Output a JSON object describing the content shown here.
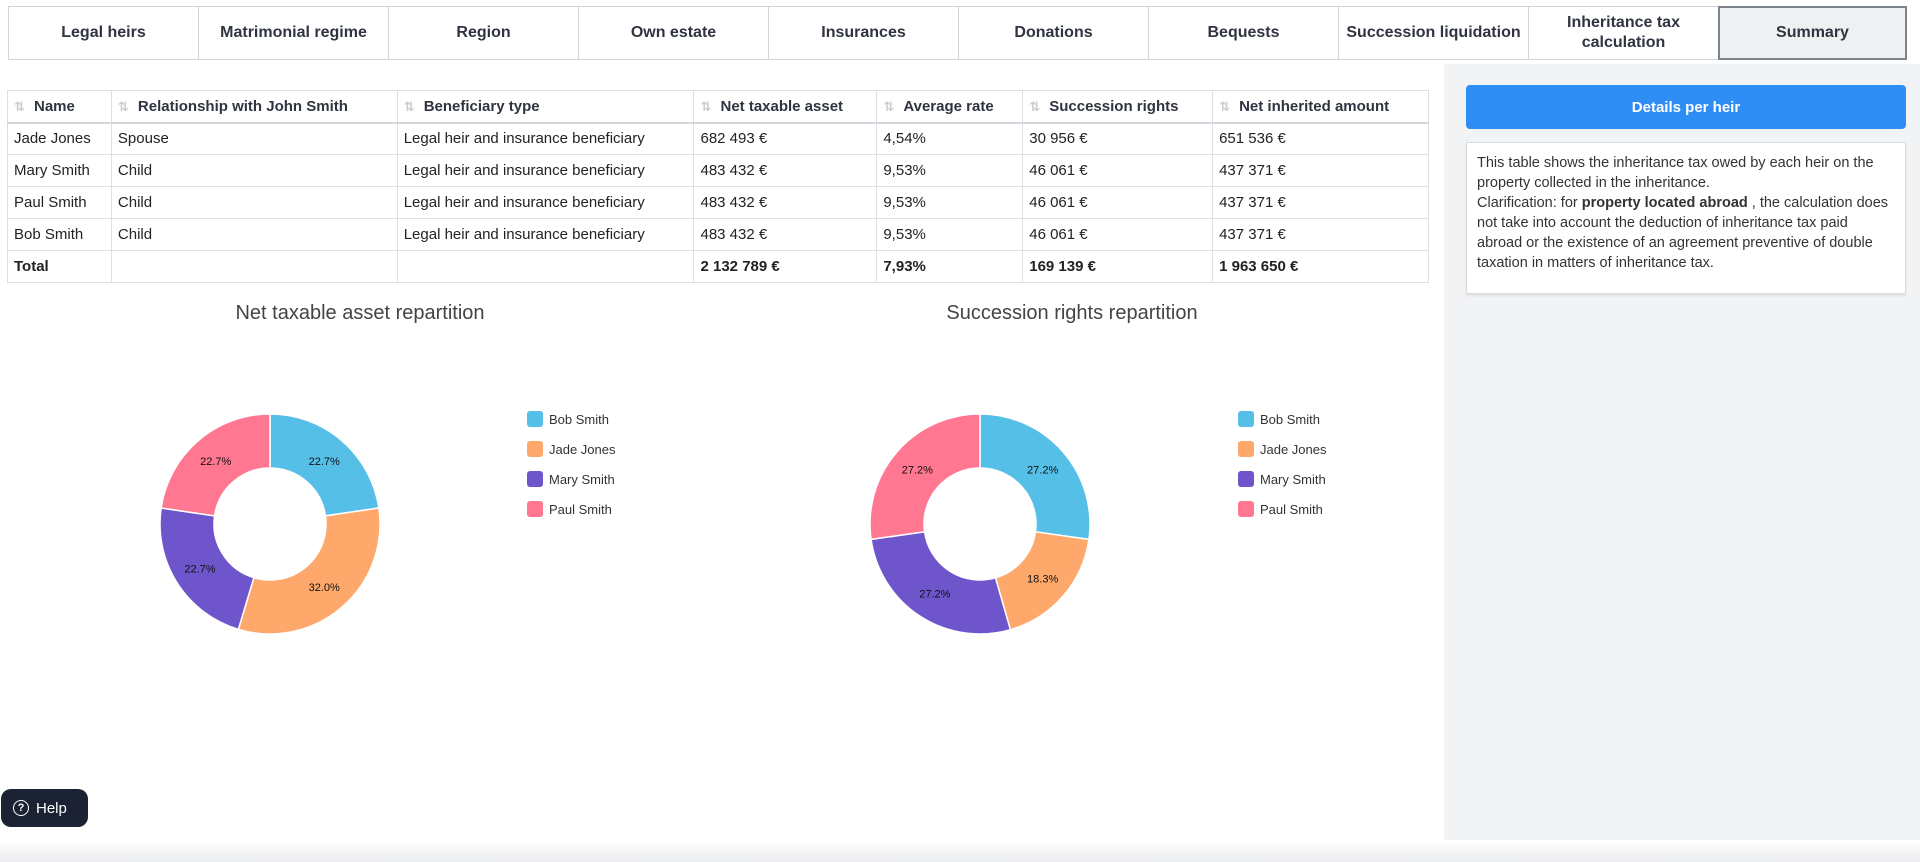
{
  "tabs": [
    {
      "label": "Legal heirs",
      "active": false
    },
    {
      "label": "Matrimonial regime",
      "active": false
    },
    {
      "label": "Region",
      "active": false
    },
    {
      "label": "Own estate",
      "active": false
    },
    {
      "label": "Insurances",
      "active": false
    },
    {
      "label": "Donations",
      "active": false
    },
    {
      "label": "Bequests",
      "active": false
    },
    {
      "label": "Succession liquidation",
      "active": false
    },
    {
      "label": "Inheritance tax calculation",
      "active": false
    },
    {
      "label": "Summary",
      "active": true
    }
  ],
  "table": {
    "columns": [
      "Name",
      "Relationship with John Smith",
      "Beneficiary type",
      "Net taxable asset",
      "Average rate",
      "Succession rights",
      "Net inherited amount"
    ],
    "rows": [
      [
        "Jade Jones",
        "Spouse",
        "Legal heir and insurance beneficiary",
        "682 493 €",
        "4,54%",
        "30 956 €",
        "651 536 €"
      ],
      [
        "Mary Smith",
        "Child",
        "Legal heir and insurance beneficiary",
        "483 432 €",
        "9,53%",
        "46 061 €",
        "437 371 €"
      ],
      [
        "Paul Smith",
        "Child",
        "Legal heir and insurance beneficiary",
        "483 432 €",
        "9,53%",
        "46 061 €",
        "437 371 €"
      ],
      [
        "Bob Smith",
        "Child",
        "Legal heir and insurance beneficiary",
        "483 432 €",
        "9,53%",
        "46 061 €",
        "437 371 €"
      ]
    ],
    "total": [
      "Total",
      "",
      "",
      "2 132 789 €",
      "7,93%",
      "169 139 €",
      "1 963 650 €"
    ]
  },
  "colors": {
    "Bob Smith": "#56bfe8",
    "Jade Jones": "#ffa86b",
    "Mary Smith": "#6e55cc",
    "Paul Smith": "#ff7790",
    "accent": "#2f8ef5"
  },
  "chart_data": [
    {
      "type": "pie",
      "title": "Net taxable asset repartition",
      "donut": true,
      "legend_position": "right",
      "labels": [
        "Bob Smith",
        "Jade Jones",
        "Mary Smith",
        "Paul Smith"
      ],
      "values": [
        22.7,
        32.0,
        22.7,
        22.7
      ],
      "value_labels": [
        "22.7%",
        "32.0%",
        "22.7%",
        "22.7%"
      ]
    },
    {
      "type": "pie",
      "title": "Succession rights repartition",
      "donut": true,
      "legend_position": "right",
      "labels": [
        "Bob Smith",
        "Jade Jones",
        "Mary Smith",
        "Paul Smith"
      ],
      "values": [
        27.2,
        18.3,
        27.2,
        27.2
      ],
      "value_labels": [
        "27.2%",
        "18.3%",
        "27.2%",
        "27.2%"
      ]
    }
  ],
  "side": {
    "button_label": "Details per heir",
    "info_text_1": "This table shows the inheritance tax owed by each heir on the property collected in the inheritance.",
    "info_text_2_pre": "Clarification: for ",
    "info_text_2_bold": "property located abroad",
    "info_text_2_post": " , the calculation does not take into account the deduction of inheritance tax paid abroad or the existence of an agreement preventive of double taxation in matters of inheritance tax."
  },
  "help": {
    "label": "Help",
    "icon": "question-circle-icon"
  }
}
